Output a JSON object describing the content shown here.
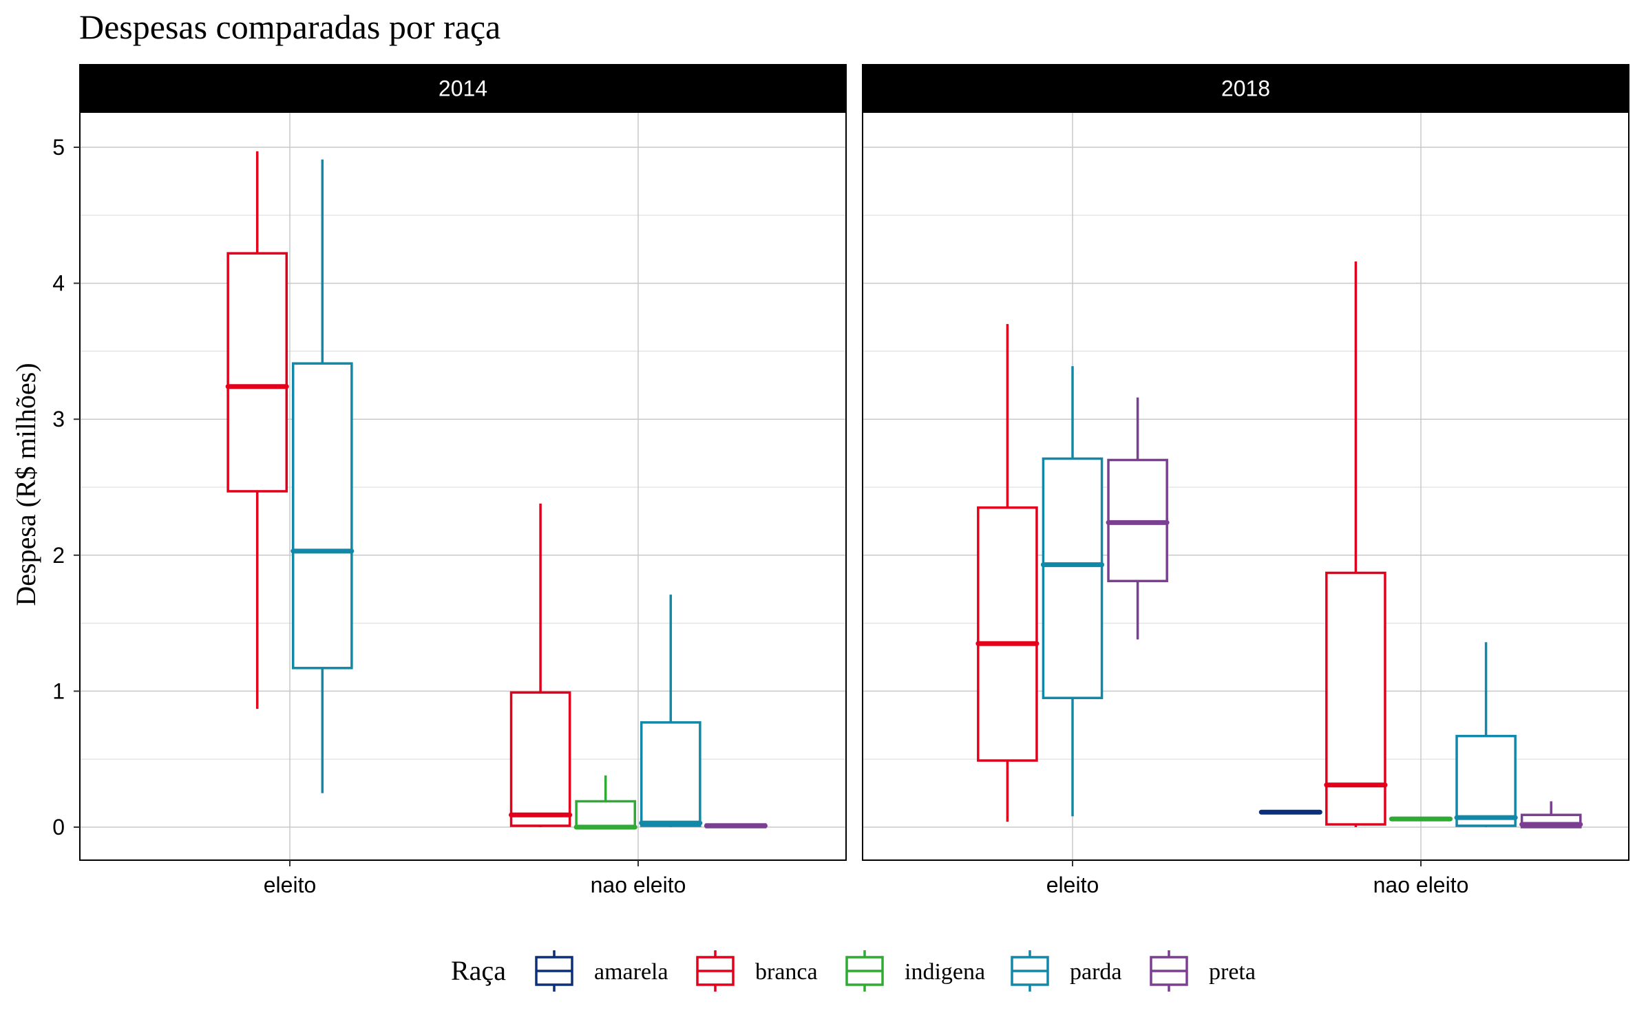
{
  "chart_data": {
    "type": "boxplot",
    "title": "Despesas comparadas por raça",
    "ylabel": "Despesa (R$ milhões)",
    "xlabel": "",
    "ylim": [
      -0.25,
      5.25
    ],
    "yticks": [
      0,
      1,
      2,
      3,
      4,
      5
    ],
    "grid": true,
    "legend_position": "bottom",
    "legend_title": "Raça",
    "categories": [
      "eleito",
      "nao eleito"
    ],
    "series": [
      {
        "name": "amarela",
        "color": "#0B2F7A"
      },
      {
        "name": "branca",
        "color": "#E3001B"
      },
      {
        "name": "indigena",
        "color": "#2FAA34"
      },
      {
        "name": "parda",
        "color": "#1288A8"
      },
      {
        "name": "preta",
        "color": "#7B3F92"
      }
    ],
    "panels": [
      {
        "label": "2014",
        "groups": [
          {
            "category": "eleito",
            "boxes": [
              {
                "series": "branca",
                "min": 0.87,
                "q1": 2.47,
                "median": 3.24,
                "q3": 4.22,
                "max": 4.97
              },
              {
                "series": "parda",
                "min": 0.25,
                "q1": 1.17,
                "median": 2.03,
                "q3": 3.41,
                "max": 4.91
              }
            ]
          },
          {
            "category": "nao eleito",
            "boxes": [
              {
                "series": "branca",
                "min": 0.0,
                "q1": 0.01,
                "median": 0.09,
                "q3": 0.99,
                "max": 2.38
              },
              {
                "series": "indigena",
                "min": 0.0,
                "q1": 0.0,
                "median": 0.0,
                "q3": 0.19,
                "max": 0.38
              },
              {
                "series": "parda",
                "min": 0.0,
                "q1": 0.01,
                "median": 0.03,
                "q3": 0.77,
                "max": 1.71
              },
              {
                "series": "preta",
                "min": 0.0,
                "q1": 0.0,
                "median": 0.01,
                "q3": 0.02,
                "max": 0.02
              }
            ]
          }
        ]
      },
      {
        "label": "2018",
        "groups": [
          {
            "category": "eleito",
            "boxes": [
              {
                "series": "branca",
                "min": 0.04,
                "q1": 0.49,
                "median": 1.35,
                "q3": 2.35,
                "max": 3.7
              },
              {
                "series": "parda",
                "min": 0.08,
                "q1": 0.95,
                "median": 1.93,
                "q3": 2.71,
                "max": 3.39
              },
              {
                "series": "preta",
                "min": 1.38,
                "q1": 1.81,
                "median": 2.24,
                "q3": 2.7,
                "max": 3.16
              }
            ]
          },
          {
            "category": "nao eleito",
            "boxes": [
              {
                "series": "amarela",
                "min": 0.11,
                "q1": 0.11,
                "median": 0.11,
                "q3": 0.11,
                "max": 0.11
              },
              {
                "series": "branca",
                "min": 0.0,
                "q1": 0.02,
                "median": 0.31,
                "q3": 1.87,
                "max": 4.16
              },
              {
                "series": "indigena",
                "min": 0.06,
                "q1": 0.06,
                "median": 0.06,
                "q3": 0.06,
                "max": 0.06
              },
              {
                "series": "parda",
                "min": 0.0,
                "q1": 0.01,
                "median": 0.07,
                "q3": 0.67,
                "max": 1.36
              },
              {
                "series": "preta",
                "min": 0.0,
                "q1": 0.0,
                "median": 0.02,
                "q3": 0.09,
                "max": 0.19
              }
            ]
          }
        ]
      }
    ]
  }
}
